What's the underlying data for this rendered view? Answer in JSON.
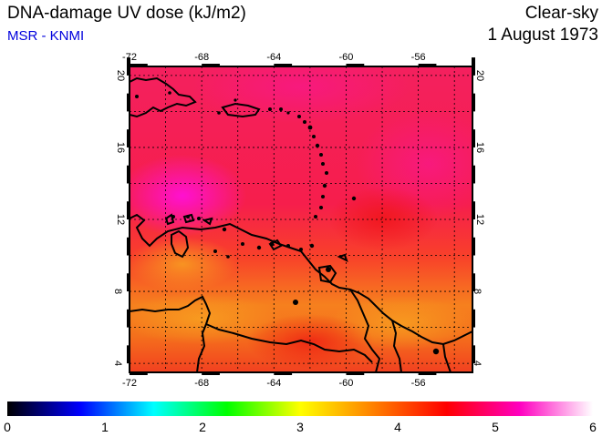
{
  "header": {
    "title": "DNA-damage UV dose (kJ/m2)",
    "subtitle": "MSR - KNMI",
    "condition": "Clear-sky",
    "date": "1 August 1973"
  },
  "map": {
    "lon_range": [
      -72,
      -53
    ],
    "lat_range": [
      3.5,
      20.5
    ],
    "lon_ticks": [
      "-72",
      "-68",
      "-64",
      "-60",
      "-56"
    ],
    "lat_ticks": [
      "4",
      "8",
      "12",
      "16",
      "20"
    ],
    "grid": true,
    "colors": {
      "frame": "#000000",
      "coast": "#000000"
    }
  },
  "colorbar": {
    "labels": [
      "0",
      "1",
      "2",
      "3",
      "4",
      "5",
      "6"
    ],
    "stops": [
      "#000000",
      "#0000ff",
      "#00ffff",
      "#00ff00",
      "#ffff00",
      "#ff8000",
      "#ff0000",
      "#ff00c0",
      "#ffffff"
    ]
  }
}
